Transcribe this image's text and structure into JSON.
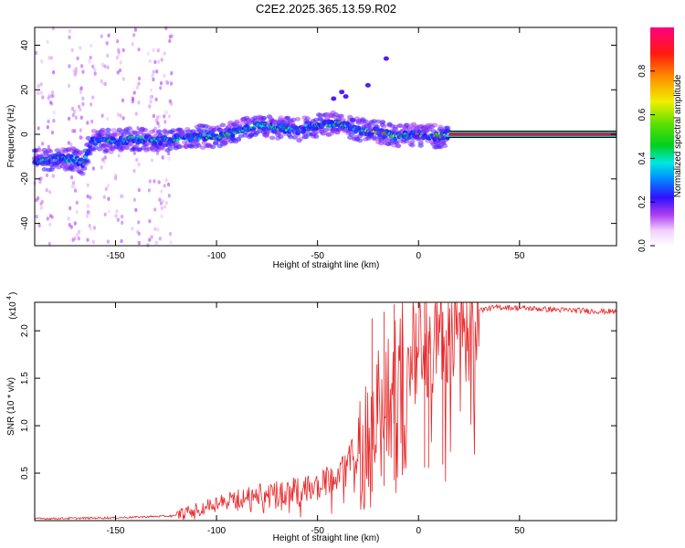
{
  "title": "C2E2.2025.365.13.59.R02",
  "colors": {
    "snr_line": "#e8282a",
    "axis": "#000000",
    "band_outline": "#00c8a0",
    "band_core": "#e8004c"
  },
  "chart_data": [
    {
      "type": "heatmap",
      "name": "spectrogram",
      "xlabel": "Height of straight line (km)",
      "ylabel": "Frequency (Hz)",
      "xlim": [
        -190,
        98
      ],
      "ylim": [
        -50,
        48
      ],
      "xticks": [
        -150,
        -100,
        -50,
        0,
        50
      ],
      "yticks": [
        -40,
        -20,
        0,
        20,
        40
      ],
      "colorbar": {
        "label": "Normalized spectral amplitude",
        "range": [
          0,
          1
        ],
        "ticks": [
          "0.0",
          "0.2",
          "0.4",
          "0.6",
          "0.8"
        ],
        "tick_values": [
          0.0,
          0.2,
          0.4,
          0.6,
          0.8
        ]
      },
      "ridge": {
        "note": "frequency of the dominant ridge vs height",
        "x": [
          -190,
          -180,
          -170,
          -166,
          -162,
          -150,
          -140,
          -130,
          -120,
          -110,
          -100,
          -90,
          -80,
          -70,
          -60,
          -50,
          -40,
          -30,
          -20,
          -10,
          0,
          10,
          15
        ],
        "y": [
          -12,
          -11,
          -11,
          -13,
          -3,
          -3,
          -2,
          -3,
          -2,
          -1,
          -1,
          1,
          4,
          3,
          2,
          4,
          5,
          2,
          1,
          -1,
          0,
          -1,
          0
        ]
      },
      "constant_band": {
        "x_start": 15,
        "x_end": 98,
        "y": 0,
        "amplitude": 1.0
      }
    },
    {
      "type": "line",
      "name": "snr",
      "xlabel": "Height of straight line (km)",
      "ylabel": "SNR (10 * v/v)",
      "scale_label": "(x10",
      "scale_exponent": "4",
      "xlim": [
        -190,
        98
      ],
      "ylim": [
        0,
        2.3
      ],
      "xticks": [
        -150,
        -100,
        -50,
        0,
        50
      ],
      "yticks": [
        0.5,
        1.0,
        1.5,
        2.0
      ],
      "ytick_labels": [
        "0.5",
        "1.0",
        "1.5",
        "2.0"
      ],
      "envelope": {
        "x": [
          -190,
          -150,
          -120,
          -110,
          -100,
          -90,
          -80,
          -70,
          -60,
          -50,
          -40,
          -30,
          -25,
          -20,
          -15,
          -10,
          -5,
          0,
          5,
          10,
          15,
          20,
          25,
          30,
          40,
          50,
          70,
          98
        ],
        "y": [
          0.02,
          0.03,
          0.05,
          0.12,
          0.18,
          0.23,
          0.28,
          0.3,
          0.32,
          0.36,
          0.5,
          0.75,
          0.95,
          1.1,
          1.3,
          1.5,
          1.75,
          1.9,
          1.85,
          1.95,
          2.0,
          2.05,
          2.15,
          2.22,
          2.25,
          2.24,
          2.22,
          2.2
        ]
      },
      "spikes": [
        {
          "x": -23,
          "y": 2.13
        },
        {
          "x": -17,
          "y": 2.2
        },
        {
          "x": -12,
          "y": 2.28
        },
        {
          "x": -8,
          "y": 2.1
        },
        {
          "x": 3,
          "y": 2.3
        },
        {
          "x": 5,
          "y": 1.95
        },
        {
          "x": 12,
          "y": 2.2
        }
      ]
    }
  ]
}
